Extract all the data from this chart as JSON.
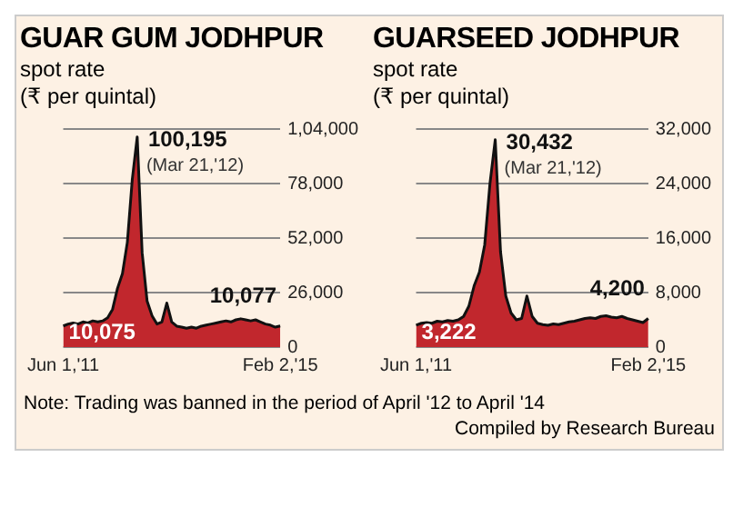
{
  "chart_data": [
    {
      "type": "area",
      "title": "GUAR GUM JODHPUR",
      "subtitle": "spot rate",
      "ylabel": "(₹ per quintal)",
      "categories": [
        "Jun 1,'11",
        null,
        null,
        null,
        null,
        null,
        null,
        null,
        null,
        null,
        null,
        null,
        null,
        null,
        null,
        null,
        null,
        null,
        null,
        null,
        null,
        null,
        null,
        null,
        null,
        null,
        null,
        null,
        null,
        null,
        null,
        null,
        null,
        null,
        null,
        null,
        null,
        null,
        null,
        null,
        null,
        null,
        null,
        null,
        "Feb 2,'15"
      ],
      "series": [
        {
          "color": "#c1272d",
          "values": [
            10075,
            11000,
            11500,
            11000,
            12000,
            11500,
            12500,
            12000,
            12500,
            14000,
            18000,
            28000,
            35000,
            50000,
            80000,
            100195,
            45000,
            22000,
            15000,
            11000,
            12000,
            21000,
            12000,
            10000,
            9500,
            9000,
            9500,
            9000,
            10000,
            10500,
            11000,
            11500,
            12000,
            12500,
            12000,
            13000,
            13500,
            13000,
            12500,
            13000,
            12000,
            11000,
            10500,
            9500,
            10077
          ],
          "value_labels": [
            "10,075",
            null,
            null,
            null,
            null,
            null,
            null,
            null,
            null,
            null,
            null,
            null,
            null,
            null,
            null,
            "100,195",
            null,
            null,
            null,
            null,
            null,
            null,
            null,
            null,
            null,
            null,
            null,
            null,
            null,
            null,
            null,
            null,
            null,
            null,
            null,
            null,
            null,
            null,
            null,
            null,
            null,
            null,
            null,
            null,
            "10,077"
          ]
        }
      ],
      "ylim": [
        0,
        104000
      ],
      "yticks": [
        {
          "value": 0,
          "label": "0"
        },
        {
          "value": 26000,
          "label": "26,000"
        },
        {
          "value": 52000,
          "label": "52,000"
        },
        {
          "value": 78000,
          "label": "78,000"
        },
        {
          "value": 104000,
          "label": "1,04,000"
        }
      ],
      "grid": "y",
      "annotations": [
        "(Mar 21,'12)",
        "Note: Trading was banned in the period of April '12 to April '14"
      ]
    },
    {
      "type": "area",
      "title": "GUARSEED JODHPUR",
      "subtitle": "spot rate",
      "ylabel": "(₹ per quintal)",
      "categories": [
        "Jun 1,'11",
        null,
        null,
        null,
        null,
        null,
        null,
        null,
        null,
        null,
        null,
        null,
        null,
        null,
        null,
        null,
        null,
        null,
        null,
        null,
        null,
        null,
        null,
        null,
        null,
        null,
        null,
        null,
        null,
        null,
        null,
        null,
        null,
        null,
        null,
        null,
        null,
        null,
        null,
        null,
        null,
        null,
        null,
        null,
        "Feb 2,'15"
      ],
      "series": [
        {
          "color": "#c1272d",
          "values": [
            3222,
            3500,
            3600,
            3500,
            3800,
            3700,
            3900,
            3800,
            4000,
            4500,
            6000,
            9000,
            11000,
            15000,
            24000,
            30432,
            14000,
            7500,
            5000,
            4000,
            4200,
            7500,
            4500,
            3500,
            3300,
            3200,
            3400,
            3300,
            3500,
            3700,
            3800,
            4000,
            4200,
            4300,
            4200,
            4500,
            4600,
            4400,
            4300,
            4500,
            4200,
            4000,
            3800,
            3600,
            4200
          ],
          "value_labels": [
            "3,222",
            null,
            null,
            null,
            null,
            null,
            null,
            null,
            null,
            null,
            null,
            null,
            null,
            null,
            null,
            "30,432",
            null,
            null,
            null,
            null,
            null,
            null,
            null,
            null,
            null,
            null,
            null,
            null,
            null,
            null,
            null,
            null,
            null,
            null,
            null,
            null,
            null,
            null,
            null,
            null,
            null,
            null,
            null,
            null,
            "4,200"
          ]
        }
      ],
      "ylim": [
        0,
        32000
      ],
      "yticks": [
        {
          "value": 0,
          "label": "0"
        },
        {
          "value": 8000,
          "label": "8,000"
        },
        {
          "value": 16000,
          "label": "16,000"
        },
        {
          "value": 24000,
          "label": "24,000"
        },
        {
          "value": 32000,
          "label": "32,000"
        }
      ],
      "grid": "y",
      "annotations": [
        "(Mar 21,'12)",
        "Compiled by Research Bureau"
      ]
    }
  ]
}
